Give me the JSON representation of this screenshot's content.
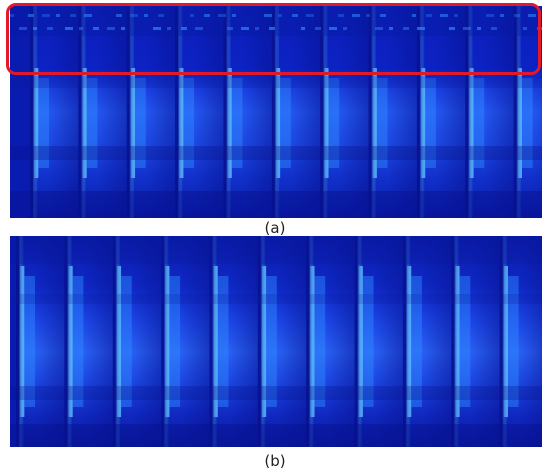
{
  "figure": {
    "panel_a": {
      "caption": "(a)",
      "column_count": 11,
      "highlight_color": "#e01a2a"
    },
    "panel_b": {
      "caption": "(b)",
      "column_count": 11
    },
    "colors": {
      "base": "#0a1bb0",
      "deep": "#071290",
      "mid": "#1535d8",
      "bright": "#2f8cff",
      "glow": "#63c7ff"
    }
  }
}
